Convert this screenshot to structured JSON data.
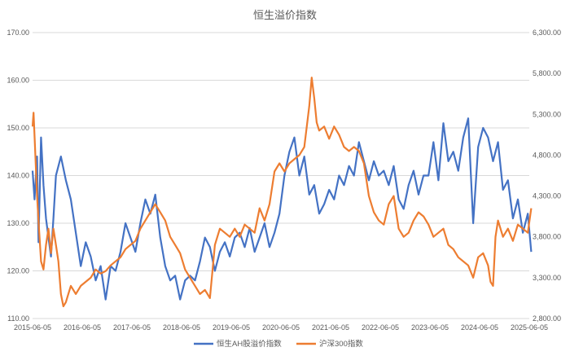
{
  "chart_data": {
    "type": "line",
    "title": "恒生溢价指数",
    "xlabel": "",
    "ylabel": "",
    "x_ticks": [
      "2015-06-05",
      "2016-06-05",
      "2017-06-05",
      "2018-06-05",
      "2019-06-05",
      "2020-06-05",
      "2021-06-05",
      "2022-06-05",
      "2023-06-05",
      "2024-06-05",
      "2025-06-05"
    ],
    "y_left": {
      "min": 110,
      "max": 170,
      "ticks": [
        110,
        120,
        130,
        140,
        150,
        160,
        170
      ],
      "tick_labels": [
        "110.00",
        "120.00",
        "130.00",
        "140.00",
        "150.00",
        "160.00",
        "170.00"
      ]
    },
    "y_right": {
      "min": 2800,
      "max": 6300,
      "ticks": [
        2800,
        3300,
        3800,
        4300,
        4800,
        5300,
        5800,
        6300
      ],
      "tick_labels": [
        "2,800.00",
        "3,300.00",
        "3,800.00",
        "4,300.00",
        "4,800.00",
        "5,300.00",
        "5,800.00",
        "6,300.00"
      ]
    },
    "grid": true,
    "legend_position": "bottom",
    "series": [
      {
        "name": "恒生AH股溢价指数",
        "axis": "left",
        "color": "#4472C4",
        "x": [
          2015.43,
          2015.47,
          2015.52,
          2015.55,
          2015.6,
          2015.65,
          2015.7,
          2015.75,
          2015.8,
          2015.85,
          2015.9,
          2016.0,
          2016.1,
          2016.2,
          2016.3,
          2016.4,
          2016.5,
          2016.6,
          2016.7,
          2016.8,
          2016.9,
          2017.0,
          2017.1,
          2017.2,
          2017.3,
          2017.4,
          2017.5,
          2017.6,
          2017.7,
          2017.8,
          2017.9,
          2018.0,
          2018.1,
          2018.2,
          2018.3,
          2018.4,
          2018.5,
          2018.6,
          2018.7,
          2018.8,
          2018.9,
          2019.0,
          2019.1,
          2019.2,
          2019.3,
          2019.4,
          2019.5,
          2019.6,
          2019.7,
          2019.8,
          2019.9,
          2020.0,
          2020.1,
          2020.2,
          2020.3,
          2020.4,
          2020.5,
          2020.6,
          2020.7,
          2020.8,
          2020.9,
          2021.0,
          2021.1,
          2021.2,
          2021.3,
          2021.4,
          2021.5,
          2021.6,
          2021.7,
          2021.8,
          2021.9,
          2022.0,
          2022.1,
          2022.2,
          2022.3,
          2022.4,
          2022.5,
          2022.6,
          2022.7,
          2022.8,
          2022.9,
          2023.0,
          2023.1,
          2023.2,
          2023.3,
          2023.4,
          2023.5,
          2023.6,
          2023.7,
          2023.8,
          2023.9,
          2024.0,
          2024.1,
          2024.2,
          2024.3,
          2024.4,
          2024.5,
          2024.6,
          2024.7,
          2024.8,
          2024.9,
          2025.0,
          2025.1,
          2025.2,
          2025.3,
          2025.4,
          2025.47
        ],
        "values": [
          141,
          135,
          144,
          126,
          148,
          138,
          131,
          127,
          123,
          131,
          140,
          144,
          139,
          135,
          128,
          121,
          126,
          123,
          118,
          121,
          114,
          121,
          120,
          124,
          130,
          127,
          124,
          130,
          135,
          132,
          136,
          127,
          121,
          118,
          119,
          114,
          118,
          119,
          118,
          122,
          127,
          125,
          120,
          124,
          126,
          123,
          127,
          128,
          125,
          129,
          124,
          127,
          130,
          125,
          128,
          132,
          140,
          145,
          148,
          140,
          144,
          136,
          138,
          132,
          134,
          137,
          135,
          140,
          138,
          142,
          140,
          147,
          143,
          139,
          143,
          140,
          141,
          138,
          142,
          135,
          133,
          138,
          141,
          136,
          140,
          140,
          147,
          139,
          151,
          143,
          145,
          141,
          148,
          152,
          130,
          146,
          150,
          148,
          143,
          147,
          137,
          139,
          131,
          135,
          128,
          132,
          124
        ]
      },
      {
        "name": "沪深300指数",
        "axis": "right",
        "color": "#ED7D31",
        "x": [
          2015.43,
          2015.45,
          2015.48,
          2015.52,
          2015.56,
          2015.6,
          2015.65,
          2015.7,
          2015.75,
          2015.8,
          2015.85,
          2015.9,
          2015.95,
          2016.0,
          2016.05,
          2016.1,
          2016.15,
          2016.2,
          2016.3,
          2016.4,
          2016.5,
          2016.6,
          2016.7,
          2016.8,
          2016.9,
          2017.0,
          2017.1,
          2017.2,
          2017.3,
          2017.4,
          2017.5,
          2017.6,
          2017.7,
          2017.8,
          2017.9,
          2018.0,
          2018.1,
          2018.2,
          2018.3,
          2018.4,
          2018.5,
          2018.6,
          2018.7,
          2018.8,
          2018.9,
          2019.0,
          2019.1,
          2019.2,
          2019.3,
          2019.4,
          2019.5,
          2019.6,
          2019.7,
          2019.8,
          2019.9,
          2020.0,
          2020.1,
          2020.2,
          2020.3,
          2020.4,
          2020.5,
          2020.6,
          2020.7,
          2020.8,
          2020.9,
          2021.0,
          2021.05,
          2021.1,
          2021.15,
          2021.2,
          2021.3,
          2021.4,
          2021.5,
          2021.6,
          2021.7,
          2021.8,
          2021.9,
          2022.0,
          2022.1,
          2022.2,
          2022.3,
          2022.4,
          2022.5,
          2022.6,
          2022.7,
          2022.8,
          2022.9,
          2023.0,
          2023.1,
          2023.2,
          2023.3,
          2023.4,
          2023.5,
          2023.6,
          2023.7,
          2023.8,
          2023.9,
          2024.0,
          2024.1,
          2024.2,
          2024.3,
          2024.4,
          2024.5,
          2024.6,
          2024.65,
          2024.7,
          2024.75,
          2024.8,
          2024.9,
          2025.0,
          2025.1,
          2025.2,
          2025.3,
          2025.4,
          2025.47
        ],
        "values": [
          5150,
          5320,
          4900,
          4300,
          3900,
          3500,
          3400,
          3700,
          3900,
          3600,
          3900,
          3700,
          3500,
          3100,
          2950,
          3000,
          3100,
          3200,
          3100,
          3200,
          3250,
          3300,
          3400,
          3350,
          3380,
          3450,
          3500,
          3550,
          3650,
          3700,
          3750,
          3900,
          4000,
          4100,
          4200,
          4100,
          4000,
          3800,
          3700,
          3600,
          3400,
          3300,
          3200,
          3100,
          3150,
          3050,
          3700,
          3900,
          3850,
          3800,
          3900,
          3800,
          3950,
          3900,
          3850,
          4150,
          4000,
          4200,
          4600,
          4700,
          4600,
          4700,
          4750,
          4800,
          4900,
          5400,
          5750,
          5500,
          5200,
          5100,
          5150,
          5000,
          5150,
          5050,
          4900,
          4850,
          4900,
          4850,
          4700,
          4300,
          4100,
          4000,
          3950,
          4200,
          4300,
          3900,
          3800,
          3850,
          4000,
          4100,
          4050,
          3950,
          3800,
          3850,
          3900,
          3700,
          3650,
          3550,
          3500,
          3450,
          3300,
          3550,
          3600,
          3450,
          3250,
          3200,
          3800,
          4000,
          3800,
          3900,
          3750,
          3950,
          3900,
          3850,
          4150
        ]
      }
    ]
  }
}
